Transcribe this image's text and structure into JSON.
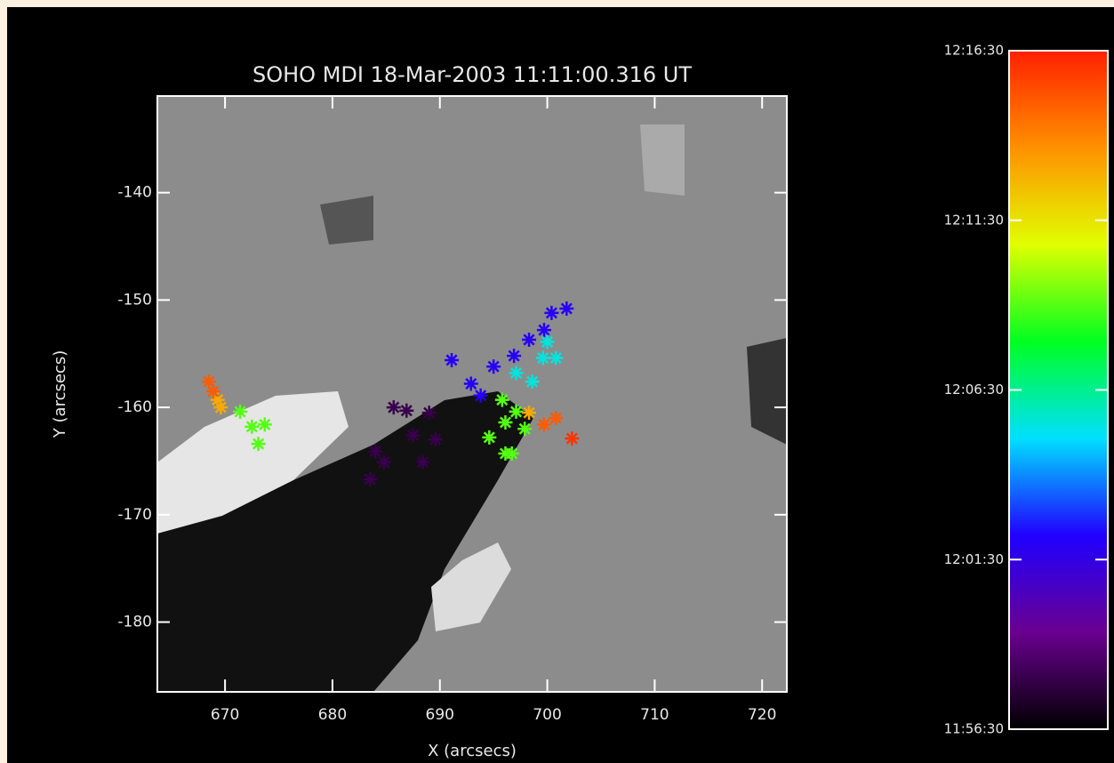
{
  "chart_data": {
    "type": "scatter",
    "title": "SOHO MDI 18-Mar-2003 11:11:00.316 UT",
    "xlabel": "X (arcsecs)",
    "ylabel": "Y (arcsecs)",
    "xlim": [
      663.7,
      722.3
    ],
    "ylim": [
      -186.5,
      -131
    ],
    "xticks": [
      670,
      680,
      690,
      700,
      710,
      720
    ],
    "yticks": [
      -140,
      -150,
      -160,
      -170,
      -180
    ],
    "x": [
      683.5,
      684.0,
      684.8,
      685.7,
      686.9,
      688.4,
      689.0,
      689.6,
      687.5,
      691.1,
      692.9,
      693.8,
      695.0,
      696.9,
      698.3,
      699.7,
      700.4,
      701.8,
      699.6,
      700.8,
      697.1,
      698.6,
      700.0,
      671.4,
      672.5,
      673.1,
      673.7,
      695.8,
      694.6,
      696.1,
      696.7,
      697.9,
      696.1,
      697.1,
      669.6,
      698.3,
      669.3,
      668.5,
      699.7,
      700.8,
      668.9,
      702.3
    ],
    "values": [
      -166.7,
      -164.1,
      -165.1,
      -160.0,
      -160.3,
      -165.1,
      -160.5,
      -163.0,
      -162.6,
      -155.6,
      -157.8,
      -158.9,
      -156.2,
      -155.2,
      -153.7,
      -152.8,
      -151.2,
      -150.8,
      -155.4,
      -155.4,
      -156.8,
      -157.6,
      -153.9,
      -160.4,
      -161.8,
      -163.4,
      -161.6,
      -159.3,
      -162.8,
      -161.4,
      -164.3,
      -162.0,
      -164.3,
      -160.4,
      -160.0,
      -160.5,
      -159.3,
      -157.6,
      -161.6,
      -161.0,
      -158.5,
      -162.9
    ],
    "times": [
      718,
      718,
      718,
      718,
      718,
      718,
      718,
      718,
      718,
      722,
      722,
      722,
      722,
      722,
      722,
      722,
      722,
      722,
      725.5,
      725.5,
      725.5,
      725.5,
      725.5,
      729,
      729,
      729,
      729,
      729,
      729,
      729,
      729,
      729,
      729,
      729,
      733,
      733,
      733,
      735,
      735,
      735,
      735,
      736
    ],
    "colorbar": {
      "lim": [
        716.5,
        736.5
      ],
      "ticks": [
        {
          "value": 736.5,
          "label": "12:16:30"
        },
        {
          "value": 731.5,
          "label": "12:11:30"
        },
        {
          "value": 726.5,
          "label": "12:06:30"
        },
        {
          "value": 721.5,
          "label": "12:01:30"
        },
        {
          "value": 716.5,
          "label": "11:56:30"
        }
      ],
      "colors": [
        "#000000",
        "#6a0090",
        "#2000ff",
        "#00e0ff",
        "#00ff20",
        "#e0ff00",
        "#ff9000",
        "#ff2000"
      ]
    }
  }
}
